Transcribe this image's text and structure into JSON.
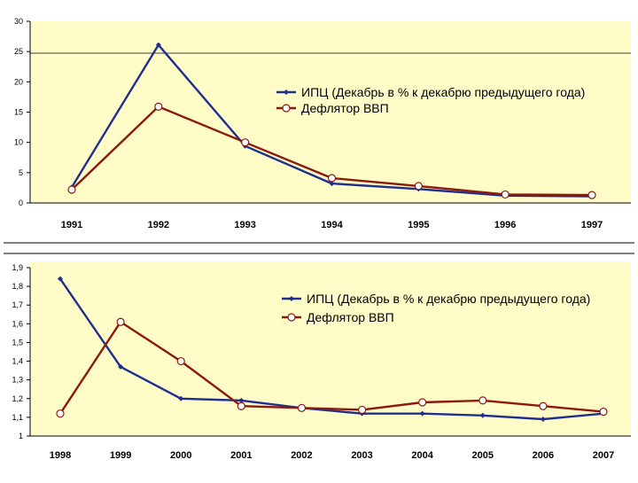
{
  "colors": {
    "cpi": "#1f2f8f",
    "deflator": "#8b1a0c",
    "plot_bg": "#fffcc8",
    "marker_fill": "#ffffff"
  },
  "chart_data": [
    {
      "type": "line",
      "categories": [
        "1991",
        "1992",
        "1993",
        "1994",
        "1995",
        "1996",
        "1997"
      ],
      "yticks": [
        "0",
        "5",
        "10",
        "15",
        "20",
        "25",
        "30"
      ],
      "ylim": [
        0,
        30
      ],
      "series": [
        {
          "name": "ИПЦ (Декабрь в % к декабрю предыдущего года)",
          "key": "cpi",
          "values": [
            2.6,
            26.1,
            9.4,
            3.2,
            2.3,
            1.2,
            1.1
          ]
        },
        {
          "name": "Дефлятор ВВП",
          "key": "deflator",
          "values": [
            2.2,
            15.9,
            10.0,
            4.1,
            2.8,
            1.4,
            1.3
          ]
        }
      ]
    },
    {
      "type": "line",
      "categories": [
        "1998",
        "1999",
        "2000",
        "2001",
        "2002",
        "2003",
        "2004",
        "2005",
        "2006",
        "2007"
      ],
      "yticks": [
        "1",
        "1,1",
        "1,2",
        "1,3",
        "1,4",
        "1,5",
        "1,6",
        "1,7",
        "1,8",
        "1,9"
      ],
      "ylim": [
        1,
        1.9
      ],
      "series": [
        {
          "name": "ИПЦ (Декабрь в % к декабрю предыдущего года)",
          "key": "cpi",
          "values": [
            1.84,
            1.37,
            1.2,
            1.19,
            1.15,
            1.12,
            1.12,
            1.11,
            1.09,
            1.12
          ]
        },
        {
          "name": "Дефлятор ВВП",
          "key": "deflator",
          "values": [
            1.12,
            1.61,
            1.4,
            1.16,
            1.15,
            1.14,
            1.18,
            1.19,
            1.16,
            1.13
          ]
        }
      ]
    }
  ]
}
